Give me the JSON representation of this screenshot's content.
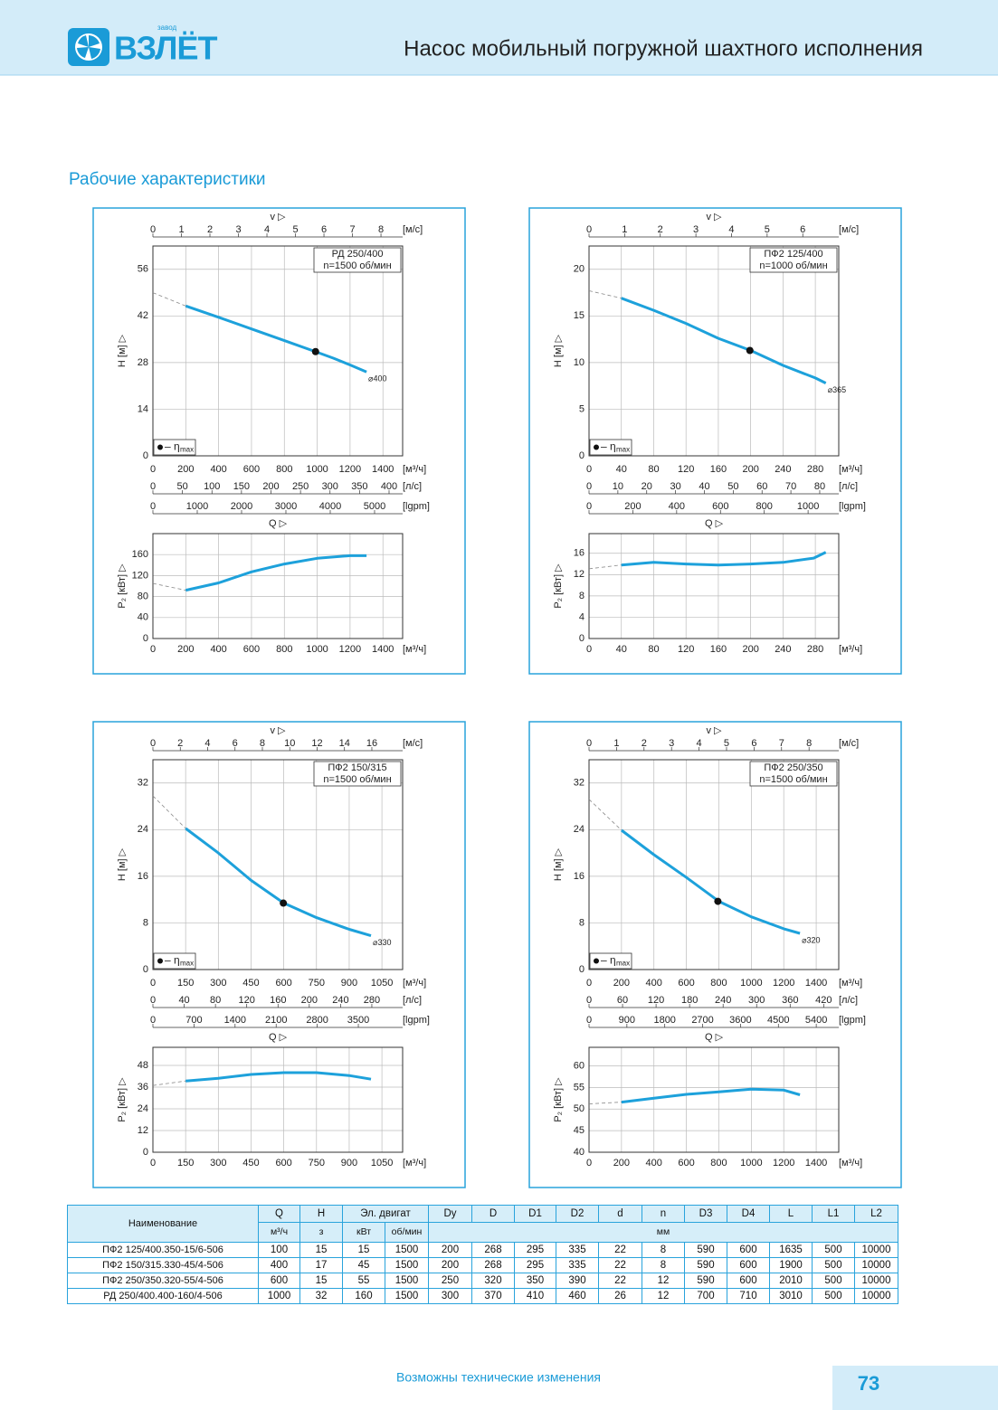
{
  "header": {
    "logo_small": "завод",
    "logo": "ВЗЛЁТ",
    "title": "Насос мобильный погружной шахтного исполнения"
  },
  "section_title": "Рабочие характеристики",
  "chart_data": [
    {
      "type": "line",
      "title": "РД 250/400",
      "subtitle": "n=1500 об/мин",
      "v_label": "v ▷",
      "v_unit": "[м/с]",
      "vlim": [
        0,
        8.76
      ],
      "vticks": [
        0,
        1,
        2,
        3,
        4,
        5,
        6,
        7,
        8
      ],
      "y_label": "H [м] ▷",
      "ylim": [
        0,
        63
      ],
      "yticks": [
        0,
        14,
        28,
        42,
        56
      ],
      "xlim": [
        0,
        1520
      ],
      "xticks": [
        0,
        200,
        400,
        600,
        800,
        1000,
        1200,
        1400
      ],
      "x_unit": "[м³/ч]",
      "x2lim": [
        0,
        423
      ],
      "x2ticks": [
        0,
        50,
        100,
        150,
        200,
        250,
        300,
        350,
        400
      ],
      "x2_unit": "[л/с]",
      "x3lim": [
        0,
        5633
      ],
      "x3ticks": [
        0,
        1000,
        2000,
        3000,
        4000,
        5000
      ],
      "x3_unit": "[lgpm]",
      "x_label": "Q ▷",
      "legend": "– η",
      "legend_sub": "max",
      "color": "#1da1db",
      "x": [
        200,
        400,
        600,
        800,
        1000,
        1100,
        1200,
        1300
      ],
      "values": [
        45,
        41.6,
        38.1,
        34.6,
        31.1,
        29.3,
        27.3,
        25.2
      ],
      "curve_label": "⌀400",
      "extrapolation": {
        "x": [
          0,
          200
        ],
        "values": [
          49,
          45
        ]
      },
      "bep": {
        "x": 990,
        "value": 31.3
      },
      "power": {
        "y_label": "P₂ [кВт] ▷",
        "ylim": [
          0,
          200
        ],
        "yticks": [
          0,
          40,
          80,
          120,
          160
        ],
        "x_unit": "[м³/ч]",
        "x": [
          200,
          400,
          600,
          800,
          1000,
          1200,
          1300
        ],
        "values": [
          92,
          106,
          127,
          142,
          153,
          158,
          158
        ],
        "extrapolation": {
          "x": [
            0,
            200
          ],
          "values": [
            105,
            92
          ]
        }
      }
    },
    {
      "type": "line",
      "title": "ПФ2 125/400",
      "subtitle": "n=1000 об/мин",
      "v_label": "v ▷",
      "v_unit": "[м/с]",
      "vlim": [
        0,
        7.01
      ],
      "vticks": [
        0,
        1,
        2,
        3,
        4,
        5,
        6
      ],
      "y_label": "H [м] ▷",
      "ylim": [
        0,
        22.5
      ],
      "yticks": [
        0,
        5,
        10,
        15,
        20
      ],
      "xlim": [
        0,
        309
      ],
      "xticks": [
        0,
        40,
        80,
        120,
        160,
        200,
        240,
        280
      ],
      "x_unit": "[м³/ч]",
      "x2lim": [
        0,
        86.6
      ],
      "x2ticks": [
        0,
        10,
        20,
        30,
        40,
        50,
        60,
        70,
        80
      ],
      "x2_unit": "[л/с]",
      "x3lim": [
        0,
        1140
      ],
      "x3ticks": [
        0,
        200,
        400,
        600,
        800,
        1000
      ],
      "x3_unit": "[lgpm]",
      "x_label": "Q ▷",
      "legend": "– η",
      "legend_sub": "max",
      "color": "#1da1db",
      "x": [
        40,
        80,
        120,
        160,
        200,
        240,
        280,
        293
      ],
      "values": [
        16.9,
        15.6,
        14.2,
        12.6,
        11.3,
        9.7,
        8.35,
        7.8
      ],
      "curve_label": "⌀365",
      "extrapolation": {
        "x": [
          0,
          40
        ],
        "values": [
          17.7,
          16.9
        ]
      },
      "bep": {
        "x": 199,
        "value": 11.3
      },
      "power": {
        "y_label": "P₂ [кВт] ▷",
        "ylim": [
          0,
          19.7
        ],
        "yticks": [
          0,
          4,
          8,
          12,
          16
        ],
        "x_unit": "[м³/ч]",
        "x": [
          40,
          80,
          120,
          160,
          200,
          240,
          278,
          293
        ],
        "values": [
          13.8,
          14.3,
          14.0,
          13.8,
          14.0,
          14.3,
          15.1,
          16.2
        ],
        "extrapolation": {
          "x": [
            0,
            40
          ],
          "values": [
            13.1,
            13.8
          ]
        }
      }
    },
    {
      "type": "line",
      "title": "ПФ2 150/315",
      "subtitle": "n=1500 об/мин",
      "v_label": "v ▷",
      "v_unit": "[м/с]",
      "vlim": [
        0,
        18.25
      ],
      "vticks": [
        0,
        2,
        4,
        6,
        8,
        10,
        12,
        14,
        16
      ],
      "y_label": "H [м] ▷",
      "ylim": [
        0,
        36
      ],
      "yticks": [
        0,
        8,
        16,
        24,
        32
      ],
      "xlim": [
        0,
        1145
      ],
      "xticks": [
        0,
        150,
        300,
        450,
        600,
        750,
        900,
        1050
      ],
      "x_unit": "[м³/ч]",
      "x2lim": [
        0,
        319.4
      ],
      "x2ticks": [
        0,
        40,
        80,
        120,
        160,
        200,
        240,
        280
      ],
      "x2_unit": "[л/с]",
      "x3lim": [
        0,
        4255
      ],
      "x3ticks": [
        0,
        700,
        1400,
        2100,
        2800,
        3500
      ],
      "x3_unit": "[lgpm]",
      "x_label": "Q ▷",
      "legend": "– η",
      "legend_sub": "max",
      "color": "#1da1db",
      "x": [
        150,
        300,
        450,
        600,
        750,
        900,
        1000
      ],
      "values": [
        24.2,
        20,
        15.3,
        11.4,
        8.9,
        6.9,
        5.8
      ],
      "curve_label": "⌀330",
      "extrapolation": {
        "x": [
          0,
          150
        ],
        "values": [
          29.8,
          24.2
        ]
      },
      "bep": {
        "x": 598,
        "value": 11.4
      },
      "power": {
        "y_label": "P₂ [кВт] ▷",
        "ylim": [
          0,
          58
        ],
        "yticks": [
          0,
          12,
          24,
          36,
          48
        ],
        "x_unit": "[м³/ч]",
        "x": [
          150,
          300,
          450,
          600,
          750,
          900,
          1000
        ],
        "values": [
          39.4,
          40.9,
          43,
          44,
          44,
          42.4,
          40.4
        ],
        "extrapolation": {
          "x": [
            0,
            150
          ],
          "values": [
            36.9,
            39.4
          ]
        }
      }
    },
    {
      "type": "line",
      "title": "ПФ2 250/350",
      "subtitle": "n=1500 об/мин",
      "v_label": "v ▷",
      "v_unit": "[м/с]",
      "vlim": [
        0,
        9.08
      ],
      "vticks": [
        0,
        1,
        2,
        3,
        4,
        5,
        6,
        7,
        8
      ],
      "y_label": "H [м] ▷",
      "ylim": [
        0,
        36
      ],
      "yticks": [
        0,
        8,
        16,
        24,
        32
      ],
      "xlim": [
        0,
        1539
      ],
      "xticks": [
        0,
        200,
        400,
        600,
        800,
        1000,
        1200,
        1400
      ],
      "x_unit": "[м³/ч]",
      "x2lim": [
        0,
        447
      ],
      "x2ticks": [
        0,
        60,
        120,
        180,
        240,
        300,
        360,
        420
      ],
      "x2_unit": "[л/с]",
      "x3lim": [
        0,
        5935
      ],
      "x3ticks": [
        0,
        900,
        1800,
        2700,
        3600,
        4500,
        5400
      ],
      "x3_unit": "[lgpm]",
      "x_label": "Q ▷",
      "legend": "– η",
      "legend_sub": "max",
      "color": "#1da1db",
      "x": [
        200,
        400,
        600,
        800,
        1000,
        1200,
        1300
      ],
      "values": [
        23.9,
        19.7,
        15.8,
        11.7,
        9.05,
        7.0,
        6.2
      ],
      "curve_label": "⌀320",
      "extrapolation": {
        "x": [
          0,
          200
        ],
        "values": [
          29.2,
          23.9
        ]
      },
      "bep": {
        "x": 794,
        "value": 11.7
      },
      "power": {
        "y_label": "P₂ [кВт] ▷",
        "ylim": [
          40,
          64.3
        ],
        "yticks": [
          40,
          45,
          50,
          55,
          60
        ],
        "x_unit": "[м³/ч]",
        "x": [
          200,
          400,
          600,
          800,
          1000,
          1200,
          1300
        ],
        "values": [
          51.6,
          52.5,
          53.4,
          54,
          54.6,
          54.4,
          53.3
        ],
        "extrapolation": {
          "x": [
            0,
            200
          ],
          "values": [
            51.2,
            51.6
          ]
        }
      }
    }
  ],
  "table": {
    "header": [
      "Наименование",
      "Q",
      "H",
      "Эл. двигат",
      "Dy",
      "D",
      "D1",
      "D2",
      "d",
      "n",
      "D3",
      "D4",
      "L",
      "L1",
      "L2"
    ],
    "units": [
      "м³/ч",
      "з",
      "кВт",
      "об/мин",
      "мм"
    ],
    "rows": [
      [
        "ПФ2 125/400.350-15/6-506",
        100,
        15,
        15,
        1500,
        200,
        268,
        295,
        335,
        22,
        8,
        590,
        600,
        1635,
        500,
        10000
      ],
      [
        "ПФ2 150/315.330-45/4-506",
        400,
        17,
        45,
        1500,
        200,
        268,
        295,
        335,
        22,
        8,
        590,
        600,
        1900,
        500,
        10000
      ],
      [
        "ПФ2 250/350.320-55/4-506",
        600,
        15,
        55,
        1500,
        250,
        320,
        350,
        390,
        22,
        12,
        590,
        600,
        2010,
        500,
        10000
      ],
      [
        "РД 250/400.400-160/4-506",
        1000,
        32,
        160,
        1500,
        300,
        370,
        410,
        460,
        26,
        12,
        700,
        710,
        3010,
        500,
        10000
      ]
    ]
  },
  "footer": {
    "note": "Возможны технические изменения",
    "page": "73"
  }
}
